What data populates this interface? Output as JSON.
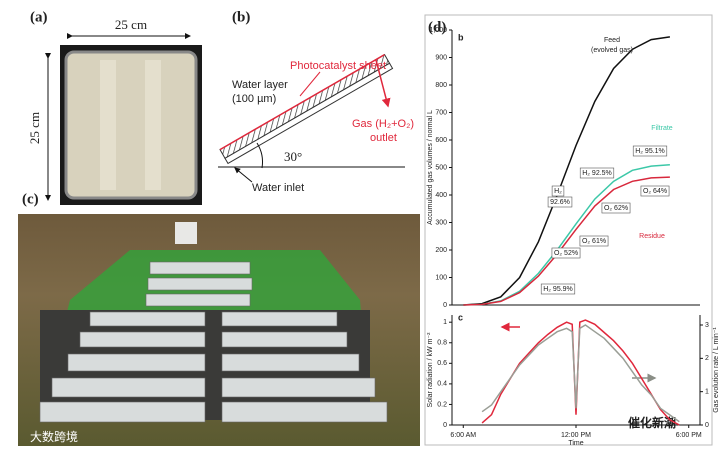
{
  "panels": {
    "a": {
      "label": "(a)",
      "width": "25 cm",
      "height": "25 cm"
    },
    "b": {
      "label": "(b)",
      "sheet": "Photocatalyst sheet",
      "water_layer": "Water layer",
      "thickness": "(100 µm)",
      "gas": "Gas (H₂+O₂)",
      "outlet": "outlet",
      "angle": "30°",
      "inlet": "Water inlet"
    },
    "c": {
      "label": "(c)"
    },
    "d": {
      "label": "(d)"
    }
  },
  "watermarks": [
    "大数跨境",
    "催化新潮"
  ],
  "chart_data": [
    {
      "type": "line",
      "panel": "b",
      "ylabel": "Accumulated gas volumes / normal L",
      "x": [
        6,
        7,
        8,
        9,
        10,
        11,
        12,
        13,
        14,
        15,
        16,
        17
      ],
      "series": [
        {
          "name": "Feed",
          "color": "#111111",
          "values": [
            0,
            5,
            30,
            100,
            230,
            400,
            580,
            740,
            860,
            930,
            965,
            975
          ]
        },
        {
          "name": "Filtrate",
          "color": "#3cc8a8",
          "values": [
            0,
            2,
            15,
            50,
            115,
            200,
            295,
            385,
            450,
            490,
            505,
            510
          ]
        },
        {
          "name": "Residue",
          "color": "#d8283c",
          "values": [
            0,
            2,
            13,
            45,
            105,
            185,
            275,
            360,
            420,
            450,
            462,
            465
          ]
        }
      ],
      "annotations": [
        "Feed",
        "(evolved gas)",
        "Filtrate",
        "Residue",
        "H₂ 95.1%",
        "H₂ 92.5%",
        "H₂",
        "92.6%",
        "O₂ 64%",
        "O₂ 62%",
        "O₂ 61%",
        "O₂ 52%",
        "H₂ 95.9%"
      ],
      "xlim": [
        5.4,
        18.6
      ],
      "ylim": [
        0,
        1000
      ],
      "yticks": [
        0,
        100,
        200,
        300,
        400,
        500,
        600,
        700,
        800,
        900,
        {
          "value": 1000,
          "label": "1,000"
        }
      ]
    },
    {
      "type": "line",
      "panel": "c",
      "ylabel": "Solar radiation / kW m⁻²",
      "y2label": "Gas evolution rate / L min⁻¹",
      "xlabel": "Time",
      "x": [
        7,
        7.5,
        8,
        8.5,
        9,
        9.5,
        10,
        10.5,
        11,
        11.5,
        11.8,
        12,
        12.2,
        12.5,
        13,
        13.5,
        14,
        14.5,
        15,
        15.5,
        16,
        16.5,
        17,
        17.5
      ],
      "series": [
        {
          "name": "Solar radiation",
          "color": "#e0283c",
          "values": [
            0.02,
            0.1,
            0.3,
            0.45,
            0.6,
            0.7,
            0.8,
            0.88,
            0.95,
            1.0,
            0.98,
            0.1,
            1.0,
            1.02,
            0.98,
            0.9,
            0.82,
            0.72,
            0.6,
            0.45,
            0.3,
            0.15,
            0.05,
            0
          ]
        },
        {
          "name": "Gas evolution rate",
          "color": "#9a9e96",
          "axis": "y2",
          "values": [
            0.4,
            0.6,
            1.0,
            1.4,
            1.8,
            2.1,
            2.4,
            2.6,
            2.8,
            2.9,
            2.8,
            0.5,
            2.9,
            3.0,
            2.8,
            2.6,
            2.3,
            2.0,
            1.6,
            1.2,
            0.9,
            0.5,
            0.3,
            0.1
          ]
        }
      ],
      "xlim": [
        5.4,
        18.6
      ],
      "xticks": [
        {
          "value": 6,
          "label": "6:00 AM"
        },
        {
          "value": 12,
          "label": "12:00 PM"
        },
        {
          "value": 18,
          "label": "6:00 PM"
        }
      ],
      "ylim": [
        0,
        1.07
      ],
      "yticks": [
        0,
        0.2,
        0.4,
        0.6,
        0.8,
        1.0
      ],
      "y2lim": [
        0,
        3.3
      ],
      "y2ticks": [
        0,
        1,
        2,
        3
      ]
    }
  ]
}
